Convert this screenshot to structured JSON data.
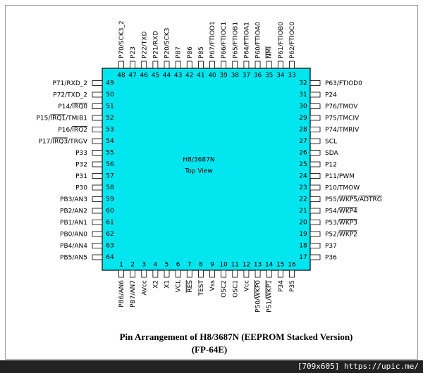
{
  "chip": {
    "name": "H8/3687N",
    "view": "Top View"
  },
  "pins": {
    "top": [
      {
        "number": "48",
        "label": [
          {
            "text": "P70/SCK3_2"
          }
        ]
      },
      {
        "number": "47",
        "label": [
          {
            "text": "P23"
          }
        ]
      },
      {
        "number": "46",
        "label": [
          {
            "text": "P22/TXD"
          }
        ]
      },
      {
        "number": "45",
        "label": [
          {
            "text": "P21/RXD"
          }
        ]
      },
      {
        "number": "44",
        "label": [
          {
            "text": "P20/SCK3"
          }
        ]
      },
      {
        "number": "43",
        "label": [
          {
            "text": "P87"
          }
        ]
      },
      {
        "number": "42",
        "label": [
          {
            "text": "P86"
          }
        ]
      },
      {
        "number": "41",
        "label": [
          {
            "text": "P85"
          }
        ]
      },
      {
        "number": "40",
        "label": [
          {
            "text": "P67/FTIOD1"
          }
        ]
      },
      {
        "number": "39",
        "label": [
          {
            "text": "P66/FTIOC1"
          }
        ]
      },
      {
        "number": "38",
        "label": [
          {
            "text": "P65/FTIOB1"
          }
        ]
      },
      {
        "number": "37",
        "label": [
          {
            "text": "P64/FTIOA1"
          }
        ]
      },
      {
        "number": "36",
        "label": [
          {
            "text": "P60/FTIOA0"
          }
        ]
      },
      {
        "number": "35",
        "label": [
          {
            "text": "NMI",
            "overline": true
          }
        ]
      },
      {
        "number": "34",
        "label": [
          {
            "text": "P61/FTIOB0"
          }
        ]
      },
      {
        "number": "33",
        "label": [
          {
            "text": "P62/FTIOC0"
          }
        ]
      }
    ],
    "left": [
      {
        "number": "49",
        "label": [
          {
            "text": "P71/RXD_2"
          }
        ]
      },
      {
        "number": "50",
        "label": [
          {
            "text": "P72/TXD_2"
          }
        ]
      },
      {
        "number": "51",
        "label": [
          {
            "text": "P14/"
          },
          {
            "text": "IRQ0",
            "overline": true
          }
        ]
      },
      {
        "number": "52",
        "label": [
          {
            "text": "P15/"
          },
          {
            "text": "IRQ1",
            "overline": true
          },
          {
            "text": "/TMIB1"
          }
        ]
      },
      {
        "number": "53",
        "label": [
          {
            "text": "P16/"
          },
          {
            "text": "IRQ2",
            "overline": true
          }
        ]
      },
      {
        "number": "54",
        "label": [
          {
            "text": "P17/"
          },
          {
            "text": "IRQ3",
            "overline": true
          },
          {
            "text": "/TRGV"
          }
        ]
      },
      {
        "number": "55",
        "label": [
          {
            "text": "P33"
          }
        ]
      },
      {
        "number": "56",
        "label": [
          {
            "text": "P32"
          }
        ]
      },
      {
        "number": "57",
        "label": [
          {
            "text": "P31"
          }
        ]
      },
      {
        "number": "58",
        "label": [
          {
            "text": "P30"
          }
        ]
      },
      {
        "number": "59",
        "label": [
          {
            "text": "PB3/AN3"
          }
        ]
      },
      {
        "number": "60",
        "label": [
          {
            "text": "PB2/AN2"
          }
        ]
      },
      {
        "number": "61",
        "label": [
          {
            "text": "PB1/AN1"
          }
        ]
      },
      {
        "number": "62",
        "label": [
          {
            "text": "PB0/AN0"
          }
        ]
      },
      {
        "number": "63",
        "label": [
          {
            "text": "PB4/AN4"
          }
        ]
      },
      {
        "number": "64",
        "label": [
          {
            "text": "PB5/AN5"
          }
        ]
      }
    ],
    "right": [
      {
        "number": "32",
        "label": [
          {
            "text": "P63/FTIOD0"
          }
        ]
      },
      {
        "number": "31",
        "label": [
          {
            "text": "P24"
          }
        ]
      },
      {
        "number": "30",
        "label": [
          {
            "text": "P76/TMOV"
          }
        ]
      },
      {
        "number": "29",
        "label": [
          {
            "text": "P75/TMCIV"
          }
        ]
      },
      {
        "number": "28",
        "label": [
          {
            "text": "P74/TMRIV"
          }
        ]
      },
      {
        "number": "27",
        "label": [
          {
            "text": "SCL"
          }
        ]
      },
      {
        "number": "26",
        "label": [
          {
            "text": "SDA"
          }
        ]
      },
      {
        "number": "25",
        "label": [
          {
            "text": "P12"
          }
        ]
      },
      {
        "number": "24",
        "label": [
          {
            "text": "P11/PWM"
          }
        ]
      },
      {
        "number": "23",
        "label": [
          {
            "text": "P10/TMOW"
          }
        ]
      },
      {
        "number": "22",
        "label": [
          {
            "text": "P55/"
          },
          {
            "text": "WKP5",
            "overline": true
          },
          {
            "text": "/"
          },
          {
            "text": "ADTRG",
            "overline": true
          }
        ]
      },
      {
        "number": "21",
        "label": [
          {
            "text": "P54/"
          },
          {
            "text": "WKP4",
            "overline": true
          }
        ]
      },
      {
        "number": "20",
        "label": [
          {
            "text": "P53/"
          },
          {
            "text": "WKP3",
            "overline": true
          }
        ]
      },
      {
        "number": "19",
        "label": [
          {
            "text": "P52/"
          },
          {
            "text": "WKP2",
            "overline": true
          }
        ]
      },
      {
        "number": "18",
        "label": [
          {
            "text": "P37"
          }
        ]
      },
      {
        "number": "17",
        "label": [
          {
            "text": "P36"
          }
        ]
      }
    ],
    "bottom": [
      {
        "number": "1",
        "label": [
          {
            "text": "PB6/AN6"
          }
        ]
      },
      {
        "number": "2",
        "label": [
          {
            "text": "PB7/AN7"
          }
        ]
      },
      {
        "number": "3",
        "label": [
          {
            "text": "AVcc"
          }
        ]
      },
      {
        "number": "4",
        "label": [
          {
            "text": "X2"
          }
        ]
      },
      {
        "number": "5",
        "label": [
          {
            "text": "X1"
          }
        ]
      },
      {
        "number": "6",
        "label": [
          {
            "text": "VCL"
          }
        ]
      },
      {
        "number": "7",
        "label": [
          {
            "text": "RES",
            "overline": true
          }
        ]
      },
      {
        "number": "8",
        "label": [
          {
            "text": "TEST"
          }
        ]
      },
      {
        "number": "9",
        "label": [
          {
            "text": "Vss"
          }
        ]
      },
      {
        "number": "10",
        "label": [
          {
            "text": "OSC2"
          }
        ]
      },
      {
        "number": "11",
        "label": [
          {
            "text": "OSC1"
          }
        ]
      },
      {
        "number": "12",
        "label": [
          {
            "text": "Vcc"
          }
        ]
      },
      {
        "number": "13",
        "label": [
          {
            "text": "P50/"
          },
          {
            "text": "WKP0",
            "overline": true
          }
        ]
      },
      {
        "number": "14",
        "label": [
          {
            "text": "P51/"
          },
          {
            "text": "WKP1",
            "overline": true
          }
        ]
      },
      {
        "number": "15",
        "label": [
          {
            "text": "P34"
          }
        ]
      },
      {
        "number": "16",
        "label": [
          {
            "text": "P35"
          }
        ]
      }
    ]
  },
  "caption": {
    "line1": "Pin Arrangement of H8/3687N (EEPROM Stacked Version)",
    "line2": "(FP-64E)"
  },
  "watermark": "[709x605] https://upic.me/"
}
